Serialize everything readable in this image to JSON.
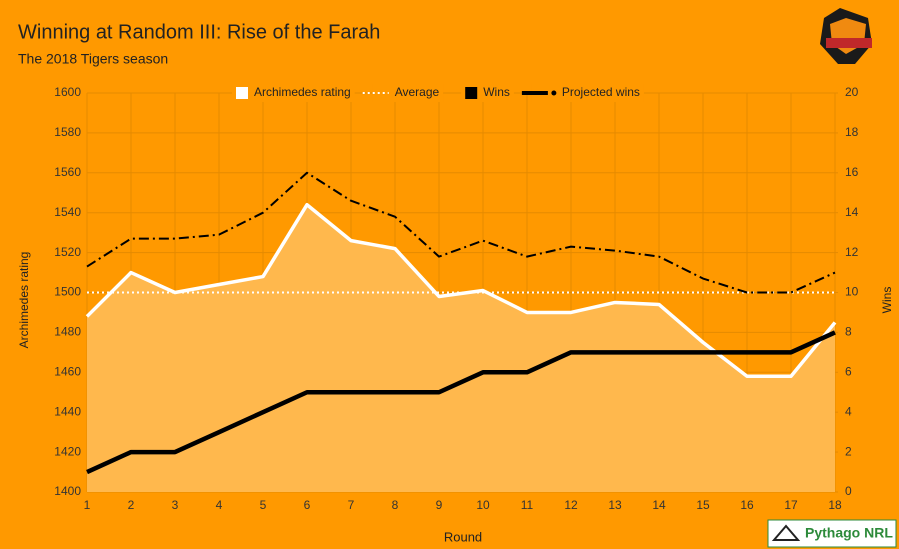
{
  "chart_data": {
    "type": "line",
    "title": "Winning at Random III: Rise of the Farah",
    "subtitle": "The 2018 Tigers season",
    "x_label": "Round",
    "y_label": "Archimedes rating",
    "y2_label": "Wins",
    "x": [
      1,
      2,
      3,
      4,
      5,
      6,
      7,
      8,
      9,
      10,
      11,
      12,
      13,
      14,
      15,
      16,
      17,
      18
    ],
    "xlim": [
      1,
      18
    ],
    "xticks": [
      1,
      2,
      3,
      4,
      5,
      6,
      7,
      8,
      9,
      10,
      11,
      12,
      13,
      14,
      15,
      16,
      17,
      18
    ],
    "ylim": [
      1400,
      1600
    ],
    "yticks": [
      1400,
      1420,
      1440,
      1460,
      1480,
      1500,
      1520,
      1540,
      1560,
      1580,
      1600
    ],
    "y2lim": [
      0,
      20
    ],
    "y2ticks": [
      0,
      2,
      4,
      6,
      8,
      10,
      12,
      14,
      16,
      18,
      20
    ],
    "grid": true,
    "legend": "top",
    "background": "#ff9900",
    "grid_color": "#e58a00",
    "series": [
      {
        "name": "Archimedes rating",
        "color": "#ffffff",
        "style": "solid",
        "fill": "#ffb84d",
        "width": 3.5,
        "values": [
          1488,
          1510,
          1500,
          1504,
          1508,
          1544,
          1526,
          1522,
          1498,
          1501,
          1490,
          1490,
          1495,
          1494,
          1475,
          1458,
          1458,
          1485
        ]
      },
      {
        "name": "Average",
        "color": "#ffffff",
        "style": "dotted",
        "width": 2,
        "values": [
          1500,
          1500,
          1500,
          1500,
          1500,
          1500,
          1500,
          1500,
          1500,
          1500,
          1500,
          1500,
          1500,
          1500,
          1500,
          1500,
          1500,
          1500
        ]
      },
      {
        "name": "Wins",
        "color": "#000000",
        "style": "solid",
        "width": 4.5,
        "axis": "y2",
        "values": [
          1,
          2,
          2,
          3,
          4,
          5,
          5,
          5,
          5,
          6,
          6,
          7,
          7,
          7,
          7,
          7,
          7,
          8
        ]
      },
      {
        "name": "Projected wins",
        "color": "#000000",
        "style": "dashdot",
        "width": 2,
        "axis": "y2",
        "values": [
          11.3,
          12.7,
          12.7,
          12.9,
          14.0,
          16.0,
          14.6,
          13.8,
          11.8,
          12.6,
          11.8,
          12.3,
          12.1,
          11.8,
          10.7,
          10.0,
          10.0,
          11.0
        ]
      }
    ]
  },
  "branding": {
    "badge": "Pythago NRL"
  }
}
